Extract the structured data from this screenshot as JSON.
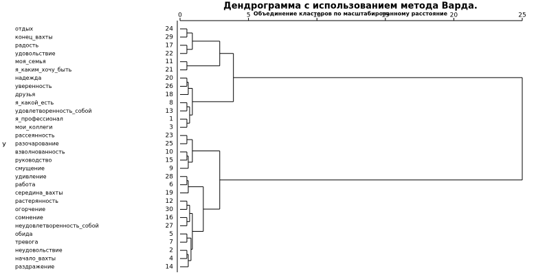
{
  "chart_data": {
    "type": "dendrogram",
    "title": "Дендрограмма с использованием метода Варда.",
    "subtitle": "Объединение кластеров по масштабированному расстояние",
    "side_label": "У",
    "xlim": [
      0,
      25
    ],
    "xticks": [
      0,
      5,
      10,
      15,
      20,
      25
    ],
    "color": "#000000",
    "leaves": [
      {
        "label": "отдых",
        "case": 24
      },
      {
        "label": "конец_вахты",
        "case": 29
      },
      {
        "label": "радость",
        "case": 17
      },
      {
        "label": "удовольствие",
        "case": 22
      },
      {
        "label": "моя_семья",
        "case": 11
      },
      {
        "label": "я_каким_хочу_быть",
        "case": 21
      },
      {
        "label": "надежда",
        "case": 20
      },
      {
        "label": "уверенность",
        "case": 26
      },
      {
        "label": "друзья",
        "case": 18
      },
      {
        "label": "я_какой_есть",
        "case": 8
      },
      {
        "label": "удовлетворенность_собой",
        "case": 13
      },
      {
        "label": "я_профессионал",
        "case": 1
      },
      {
        "label": "мои_коллеги",
        "case": 3
      },
      {
        "label": "рассеянность",
        "case": 23
      },
      {
        "label": "разочарование",
        "case": 25
      },
      {
        "label": "взволнованность",
        "case": 10
      },
      {
        "label": "руководство",
        "case": 15
      },
      {
        "label": "смущение",
        "case": 9
      },
      {
        "label": "удивление",
        "case": 28
      },
      {
        "label": "работа",
        "case": 6
      },
      {
        "label": "середина_вахты",
        "case": 19
      },
      {
        "label": "растерянность",
        "case": 12
      },
      {
        "label": "огорчение",
        "case": 30
      },
      {
        "label": "сомнение",
        "case": 16
      },
      {
        "label": "неудовлетворенность_собой",
        "case": 27
      },
      {
        "label": "обида",
        "case": 5
      },
      {
        "label": "тревога",
        "case": 7
      },
      {
        "label": "неудовольствие",
        "case": 2
      },
      {
        "label": "начало_вахты",
        "case": 4
      },
      {
        "label": "раздражение",
        "case": 14
      }
    ],
    "merges": [
      {
        "children": [
          0,
          1
        ],
        "height": 0.5
      },
      {
        "children": [
          2,
          3
        ],
        "height": 0.5
      },
      {
        "children": [
          30,
          31
        ],
        "height": 0.9
      },
      {
        "children": [
          4,
          5
        ],
        "height": 0.5
      },
      {
        "children": [
          32,
          33
        ],
        "height": 2.9
      },
      {
        "children": [
          6,
          7
        ],
        "height": 0.5
      },
      {
        "children": [
          35,
          8
        ],
        "height": 0.6
      },
      {
        "children": [
          9,
          10
        ],
        "height": 0.5
      },
      {
        "children": [
          11,
          12
        ],
        "height": 0.5
      },
      {
        "children": [
          37,
          38
        ],
        "height": 0.7
      },
      {
        "children": [
          36,
          39
        ],
        "height": 0.9
      },
      {
        "children": [
          34,
          40
        ],
        "height": 3.9
      },
      {
        "children": [
          13,
          14
        ],
        "height": 0.5
      },
      {
        "children": [
          15,
          16
        ],
        "height": 0.5
      },
      {
        "children": [
          43,
          17
        ],
        "height": 0.6
      },
      {
        "children": [
          42,
          44
        ],
        "height": 0.9
      },
      {
        "children": [
          18,
          19
        ],
        "height": 0.5
      },
      {
        "children": [
          46,
          20
        ],
        "height": 0.6
      },
      {
        "children": [
          21,
          22
        ],
        "height": 0.5
      },
      {
        "children": [
          23,
          24
        ],
        "height": 0.5
      },
      {
        "children": [
          48,
          49
        ],
        "height": 0.7
      },
      {
        "children": [
          25,
          26
        ],
        "height": 0.5
      },
      {
        "children": [
          27,
          28
        ],
        "height": 0.5
      },
      {
        "children": [
          52,
          29
        ],
        "height": 0.6
      },
      {
        "children": [
          51,
          53
        ],
        "height": 0.8
      },
      {
        "children": [
          50,
          54
        ],
        "height": 0.9
      },
      {
        "children": [
          47,
          55
        ],
        "height": 1.7
      },
      {
        "children": [
          45,
          56
        ],
        "height": 2.9
      },
      {
        "children": [
          41,
          57
        ],
        "height": 25
      }
    ]
  }
}
